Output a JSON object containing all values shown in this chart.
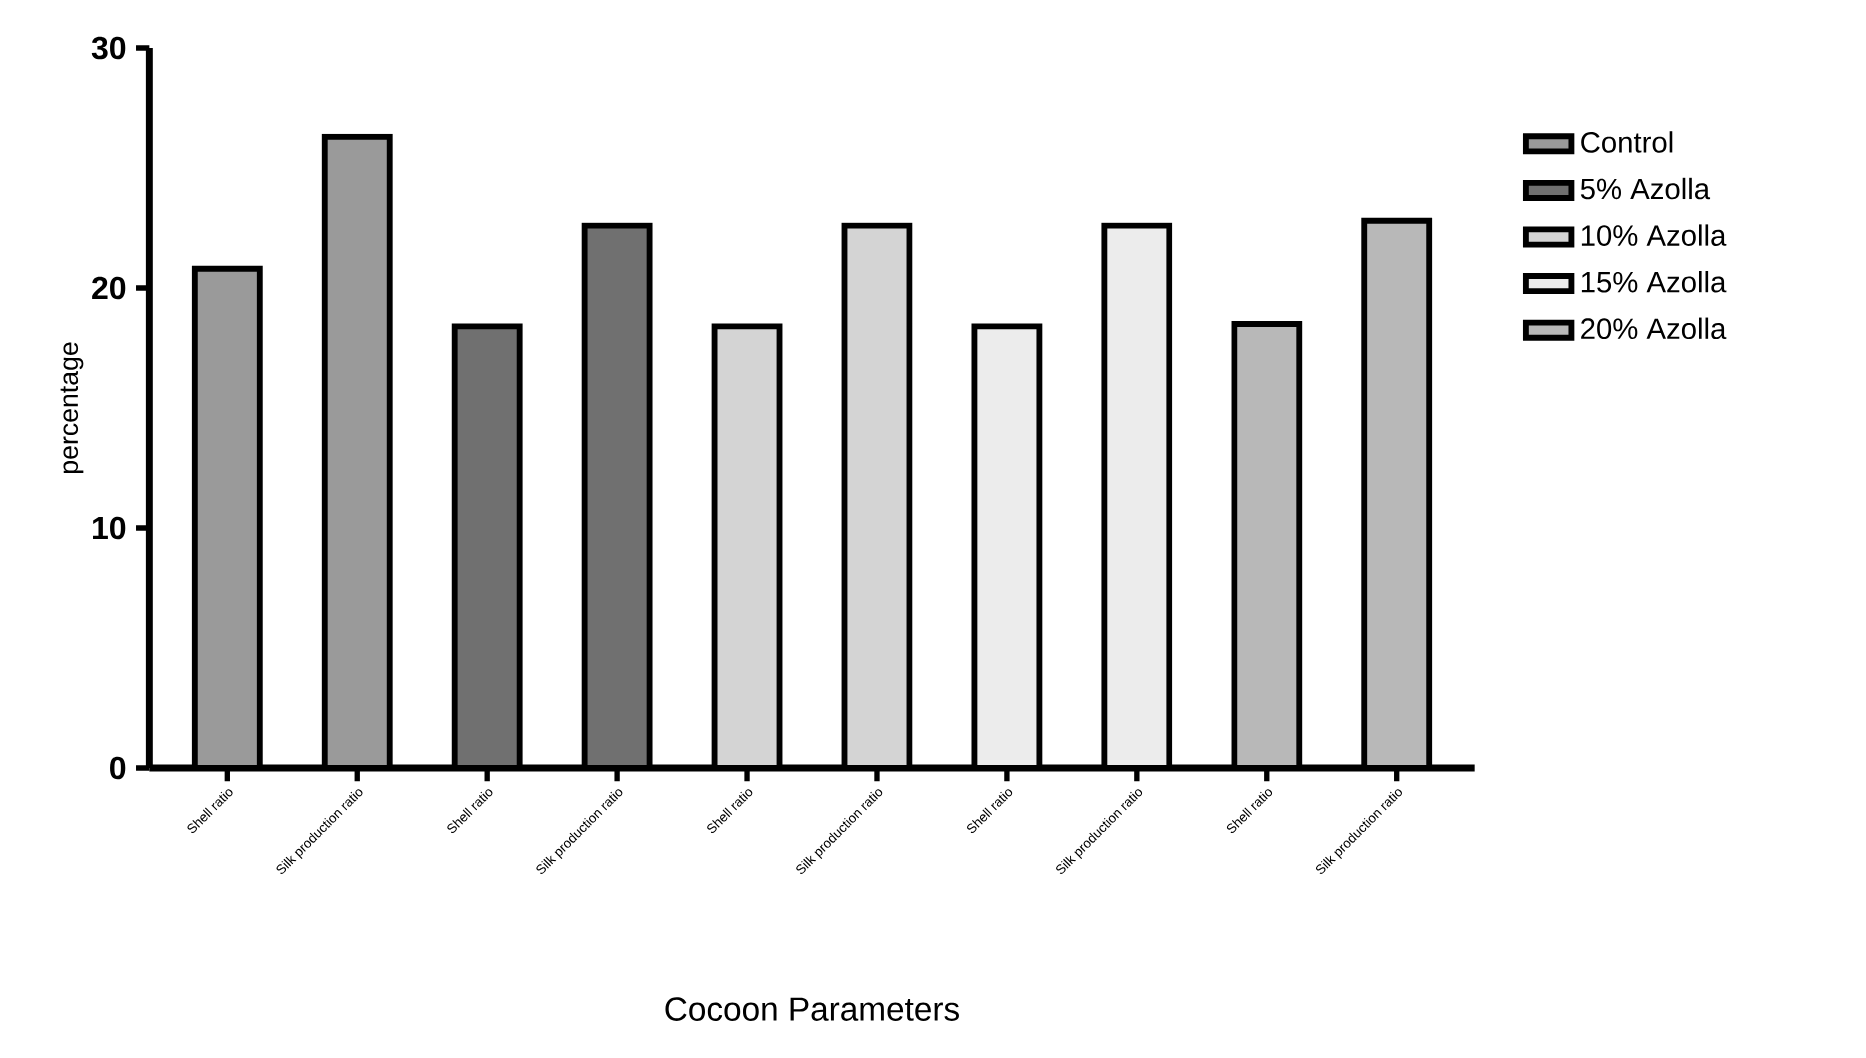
{
  "chart_data": {
    "type": "bar",
    "xlabel": "Cocoon Parameters",
    "ylabel": "percentage",
    "categories": [
      "Shell ratio",
      "Silk production ratio",
      "Shell ratio",
      "Silk production ratio",
      "Shell ratio",
      "Silk production ratio",
      "Shell ratio",
      "Silk production ratio",
      "Shell ratio",
      "Silk production ratio"
    ],
    "series": [
      {
        "name": "Control",
        "color": "#9a9a9a",
        "values": [
          20.8,
          26.3,
          null,
          null,
          null,
          null,
          null,
          null,
          null,
          null
        ]
      },
      {
        "name": "5% Azolla",
        "color": "#707070",
        "values": [
          null,
          null,
          18.4,
          22.6,
          null,
          null,
          null,
          null,
          null,
          null
        ]
      },
      {
        "name": "10% Azolla",
        "color": "#d4d4d4",
        "values": [
          null,
          null,
          null,
          null,
          18.4,
          22.6,
          null,
          null,
          null,
          null
        ]
      },
      {
        "name": "15% Azolla",
        "color": "#ececec",
        "values": [
          null,
          null,
          null,
          null,
          null,
          null,
          18.4,
          22.6,
          null,
          null
        ]
      },
      {
        "name": "20% Azolla",
        "color": "#b8b8b8",
        "values": [
          null,
          null,
          null,
          null,
          null,
          null,
          null,
          null,
          18.5,
          22.8
        ]
      }
    ],
    "ylim": [
      0,
      30
    ],
    "yticks": [
      0,
      10,
      20,
      30
    ],
    "legend": "right"
  }
}
